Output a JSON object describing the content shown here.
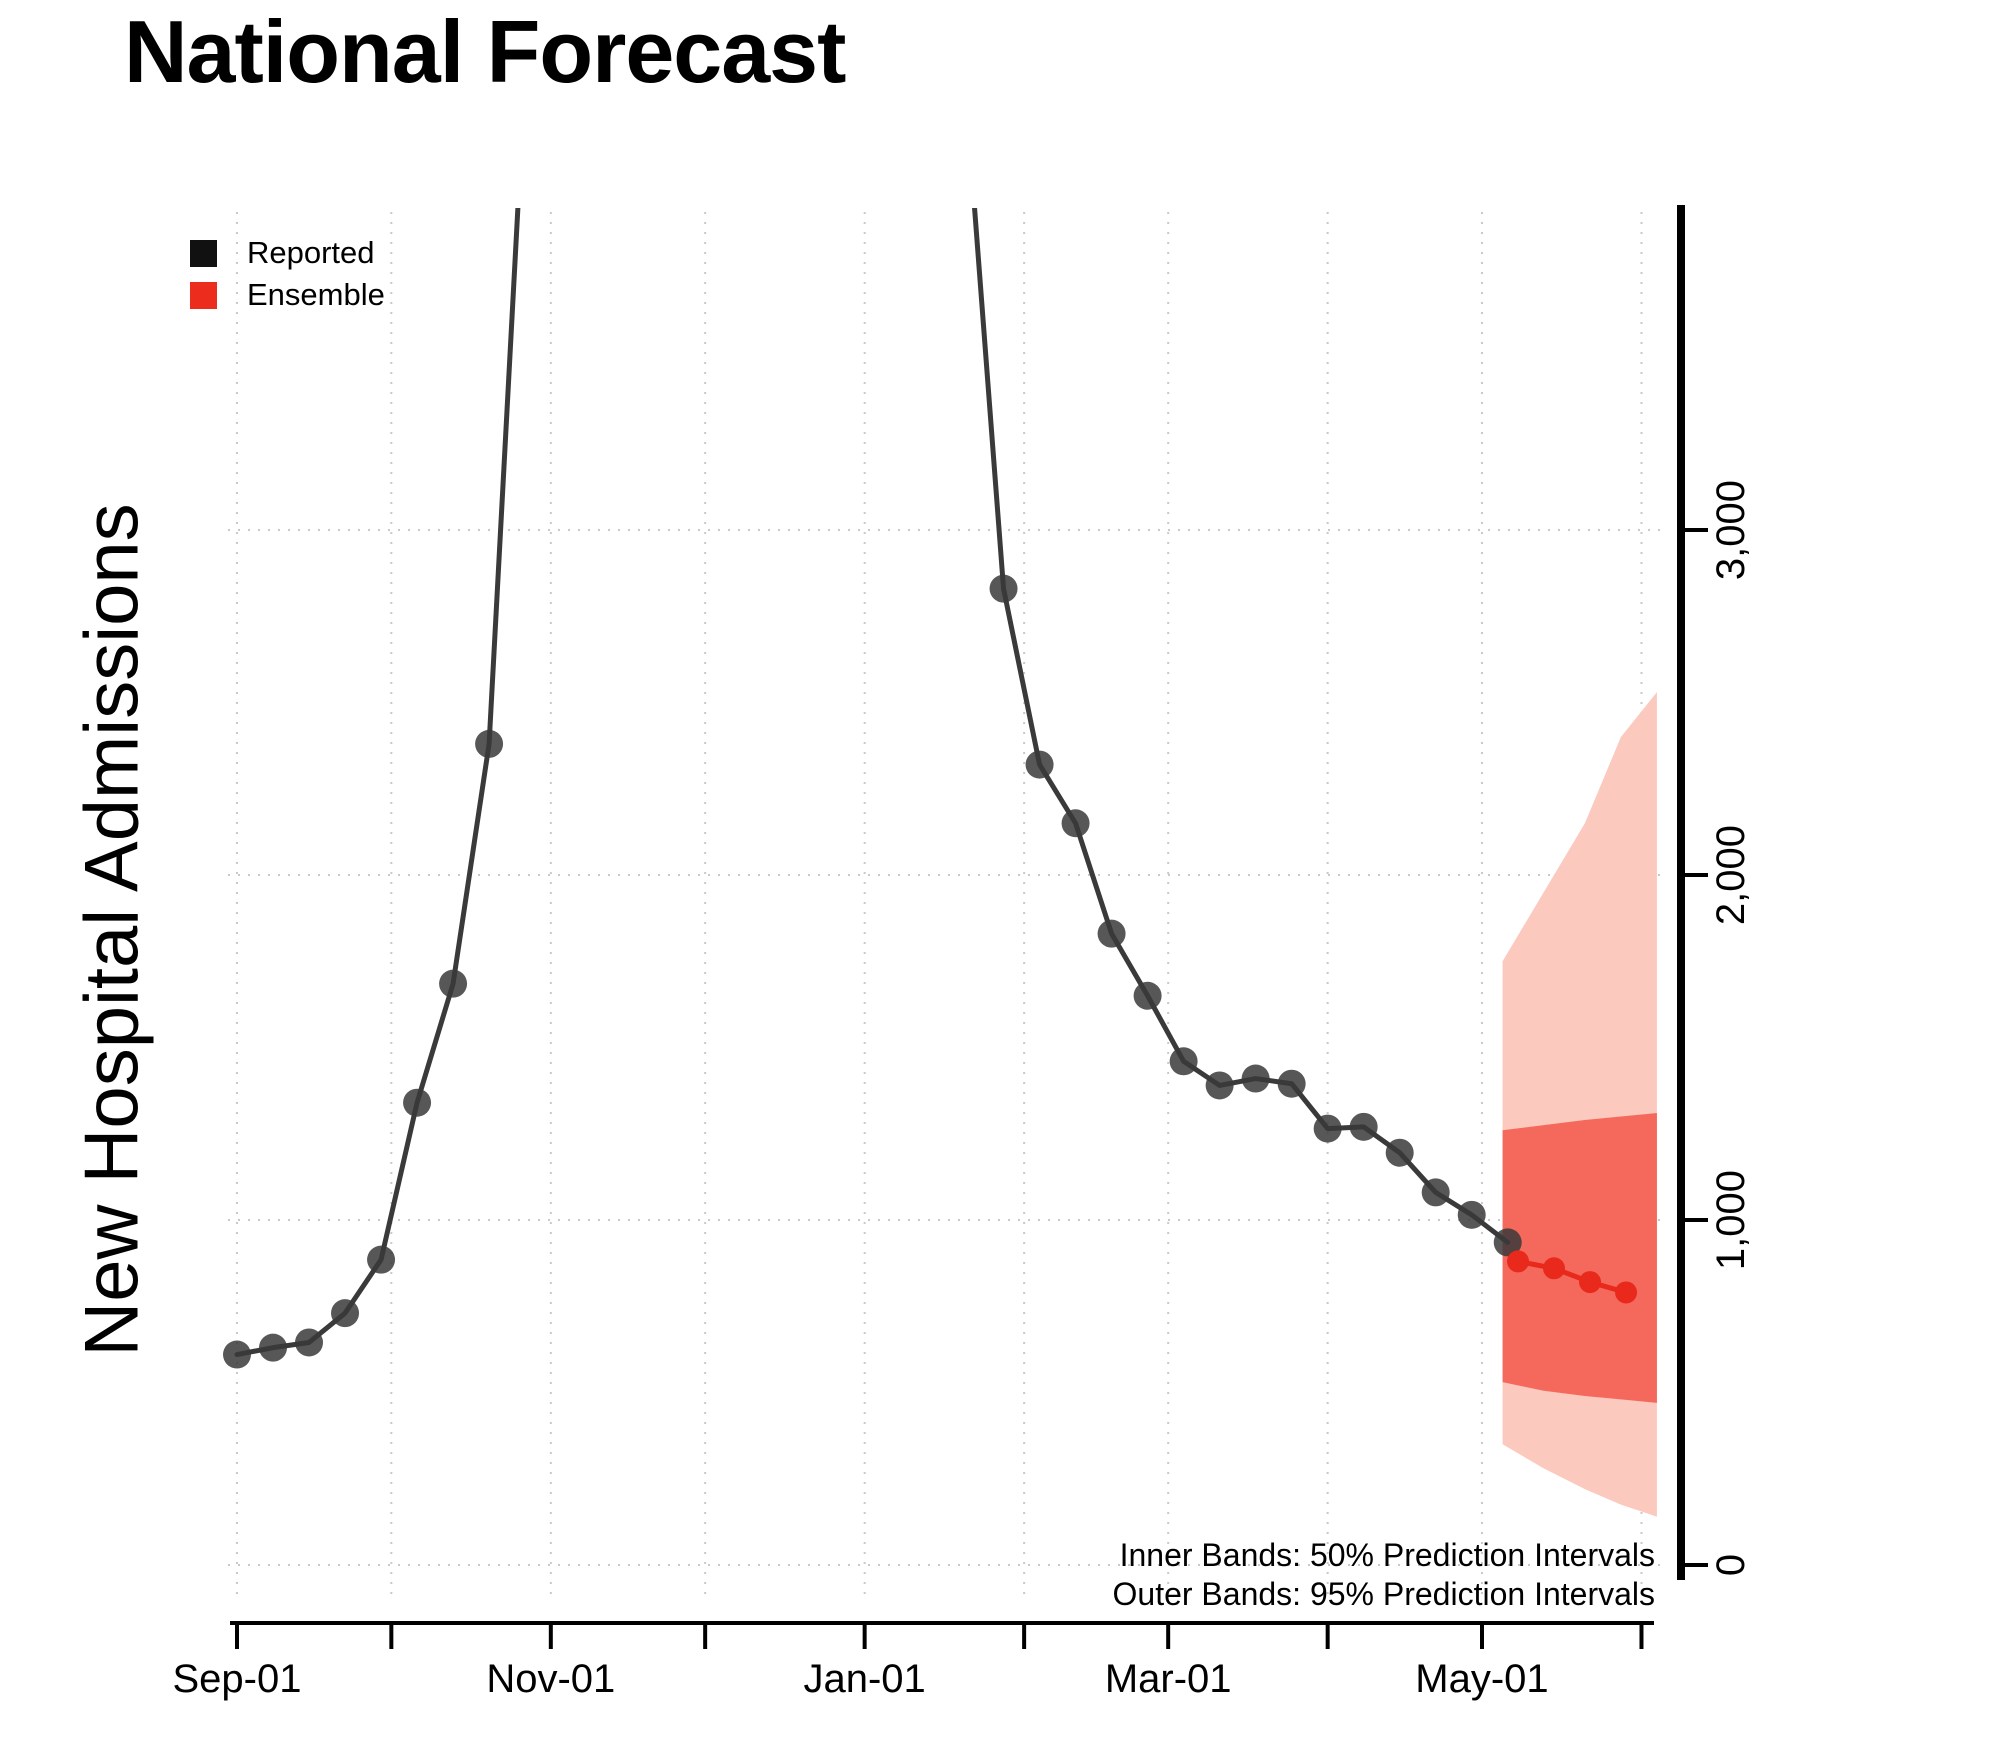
{
  "title": "National Forecast",
  "ylabel": "New Hospital Admissions",
  "legend": [
    {
      "label": "Reported",
      "color": "#111111"
    },
    {
      "label": "Ensemble",
      "color": "#ec2d1e"
    }
  ],
  "notes": [
    "Inner Bands: 50% Prediction Intervals",
    "Outer Bands: 95% Prediction Intervals"
  ],
  "chart_data": {
    "type": "line",
    "title": "National Forecast",
    "xlabel": "",
    "ylabel": "New Hospital Admissions",
    "x_unit_note": "x values are days since Sep-01; reported points are weekly",
    "xlim": [
      -3,
      280
    ],
    "ylim": [
      0,
      3920
    ],
    "grid": true,
    "legend_position": "top-left",
    "x_ticks": [
      {
        "x": 0,
        "label": "Sep-01"
      },
      {
        "x": 61,
        "label": "Nov-01"
      },
      {
        "x": 122,
        "label": "Jan-01"
      },
      {
        "x": 181,
        "label": "Mar-01"
      },
      {
        "x": 242,
        "label": "May-01"
      }
    ],
    "x_minor_ticks": [
      0,
      30,
      61,
      91,
      122,
      153,
      181,
      212,
      242,
      273
    ],
    "y_ticks": [
      {
        "v": 0,
        "label": "0"
      },
      {
        "v": 1000,
        "label": "1,000"
      },
      {
        "v": 2000,
        "label": "2,000"
      },
      {
        "v": 3000,
        "label": "3,000"
      }
    ],
    "series": [
      {
        "name": "Reported",
        "color": "#3a3a3a",
        "note": "values above ylim are off-chart continuation anchors (peak not shown)",
        "segments": [
          {
            "x": [
              0,
              7,
              14,
              21,
              28,
              35,
              42,
              49,
              57
            ],
            "y": [
              610,
              630,
              645,
              730,
              885,
              1340,
              1685,
              2380,
              4600
            ]
          },
          {
            "x": [
              142,
              149,
              156,
              163,
              170,
              177,
              184,
              191,
              198,
              205,
              212,
              219,
              226,
              233,
              240,
              247
            ],
            "y": [
              4200,
              2830,
              2320,
              2150,
              1830,
              1650,
              1460,
              1390,
              1410,
              1395,
              1265,
              1270,
              1195,
              1080,
              1015,
              935
            ]
          }
        ]
      },
      {
        "name": "Ensemble",
        "color": "#e8291c",
        "segments": [
          {
            "x": [
              249,
              256,
              263,
              270
            ],
            "y": [
              880,
              860,
              820,
              790
            ]
          }
        ]
      }
    ],
    "bands": [
      {
        "level": "95",
        "label": "Outer Bands: 95% Prediction Intervals",
        "color": "#fbc9bd",
        "x": [
          246,
          254,
          262,
          269,
          276
        ],
        "low": [
          350,
          280,
          220,
          175,
          140
        ],
        "high": [
          1750,
          1950,
          2150,
          2400,
          2530
        ]
      },
      {
        "level": "50",
        "label": "Inner Bands: 50% Prediction Intervals",
        "color": "#f4695c",
        "x": [
          246,
          254,
          262,
          269,
          276
        ],
        "low": [
          530,
          505,
          490,
          480,
          470
        ],
        "high": [
          1260,
          1275,
          1290,
          1300,
          1310
        ]
      }
    ]
  }
}
